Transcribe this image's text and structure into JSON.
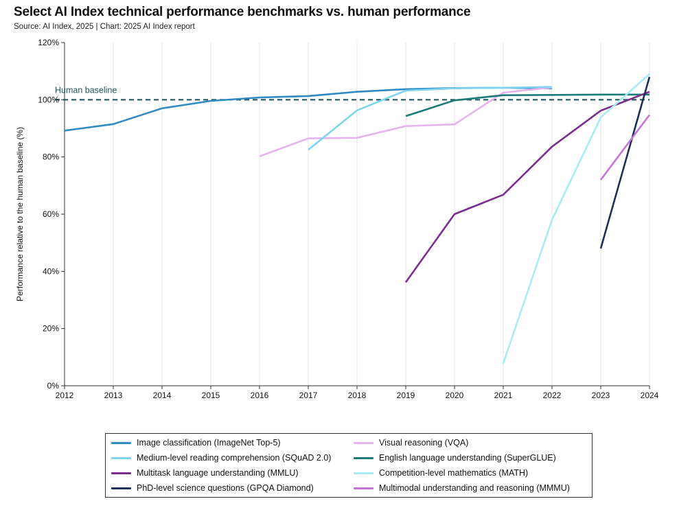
{
  "header": {
    "title": "Select AI Index technical performance benchmarks vs. human performance",
    "subtitle": "Source: AI Index, 2025 | Chart: 2025 AI Index report"
  },
  "chart_data": {
    "type": "line",
    "title": "Select AI Index technical performance benchmarks vs. human performance",
    "xlabel": "",
    "ylabel": "Performance relative to the human baseline (%)",
    "xlim": [
      2012,
      2024
    ],
    "ylim": [
      0,
      120
    ],
    "x_ticks": [
      "2012",
      "2013",
      "2014",
      "2015",
      "2016",
      "2017",
      "2018",
      "2019",
      "2020",
      "2021",
      "2022",
      "2023",
      "2024"
    ],
    "y_ticks": [
      "0%",
      "20%",
      "40%",
      "60%",
      "80%",
      "100%",
      "120%"
    ],
    "grid": "vertical",
    "baseline": {
      "label": "Human baseline",
      "value": 100,
      "color": "#1f5960"
    },
    "legend_position": "bottom",
    "series": [
      {
        "name": "Image classification (ImageNet Top-5)",
        "color": "#2f8bc1",
        "points": [
          [
            2012,
            89.2
          ],
          [
            2013,
            91.5
          ],
          [
            2014,
            97
          ],
          [
            2015,
            99.6
          ],
          [
            2016,
            100.8
          ],
          [
            2017,
            101.3
          ],
          [
            2018,
            102.8
          ],
          [
            2019,
            103.7
          ],
          [
            2020,
            104.1
          ],
          [
            2021,
            104.2
          ],
          [
            2022,
            104.0
          ]
        ]
      },
      {
        "name": "Visual reasoning (VQA)",
        "color": "#e7b3ef",
        "points": [
          [
            2016,
            80.2
          ],
          [
            2017,
            86.5
          ],
          [
            2018,
            86.7
          ],
          [
            2019,
            90.8
          ],
          [
            2020,
            91.4
          ],
          [
            2021,
            102.5
          ],
          [
            2022,
            104.3
          ]
        ]
      },
      {
        "name": "Medium-level reading comprehension (SQuAD 2.0)",
        "color": "#7fd5f0",
        "points": [
          [
            2017,
            82.5
          ],
          [
            2018,
            96.3
          ],
          [
            2019,
            103.2
          ],
          [
            2020,
            104.0
          ],
          [
            2021,
            104.2
          ],
          [
            2022,
            104.5
          ]
        ]
      },
      {
        "name": "English language understanding (SuperGLUE)",
        "color": "#1a7b78",
        "points": [
          [
            2019,
            94.3
          ],
          [
            2020,
            99.8
          ],
          [
            2021,
            101.6
          ],
          [
            2022,
            101.7
          ],
          [
            2023,
            101.8
          ],
          [
            2024,
            101.8
          ]
        ]
      },
      {
        "name": "Multitask language understanding (MMLU)",
        "color": "#7b2d8e",
        "points": [
          [
            2019,
            36.2
          ],
          [
            2020,
            60
          ],
          [
            2021,
            66.8
          ],
          [
            2022,
            83.6
          ],
          [
            2023,
            96.2
          ],
          [
            2024,
            102.8
          ]
        ]
      },
      {
        "name": "Competition-level mathematics (MATH)",
        "color": "#a7ecf4",
        "points": [
          [
            2021,
            7.8
          ],
          [
            2022,
            58
          ],
          [
            2023,
            93.8
          ],
          [
            2024,
            109.0
          ]
        ]
      },
      {
        "name": "PhD-level science questions (GPQA Diamond)",
        "color": "#1e2f5c",
        "points": [
          [
            2023,
            48
          ],
          [
            2024,
            108
          ]
        ]
      },
      {
        "name": "Multimodal understanding and reasoning (MMMU)",
        "color": "#c474d6",
        "points": [
          [
            2023,
            72
          ],
          [
            2024,
            94.7
          ]
        ]
      }
    ]
  },
  "legend": {
    "left": [
      {
        "label": "Image classification (ImageNet Top-5)",
        "color": "#2f8bc1"
      },
      {
        "label": "Medium-level reading comprehension (SQuAD 2.0)",
        "color": "#7fd5f0"
      },
      {
        "label": "Multitask language understanding (MMLU)",
        "color": "#7b2d8e"
      },
      {
        "label": "PhD-level science questions (GPQA Diamond)",
        "color": "#1e2f5c"
      }
    ],
    "right": [
      {
        "label": "Visual reasoning (VQA)",
        "color": "#e7b3ef"
      },
      {
        "label": "English language understanding (SuperGLUE)",
        "color": "#1a7b78"
      },
      {
        "label": "Competition-level mathematics (MATH)",
        "color": "#a7ecf4"
      },
      {
        "label": "Multimodal understanding and reasoning (MMMU)",
        "color": "#c474d6"
      }
    ]
  }
}
